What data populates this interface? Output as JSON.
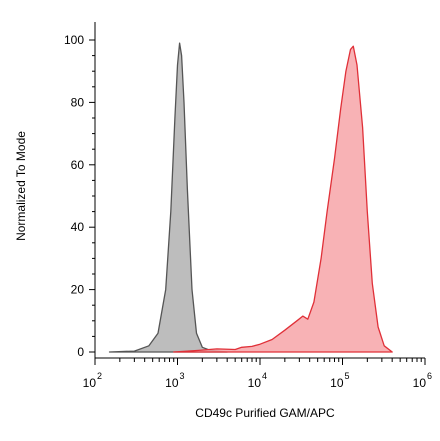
{
  "chart_data": {
    "type": "area",
    "title": "",
    "xlabel": "CD49c Purified GAM/APC",
    "ylabel": "Normalized To Mode",
    "x_scale": "log",
    "xlim": [
      100,
      1000000
    ],
    "ylim": [
      0,
      100
    ],
    "x_ticks": [
      {
        "base": "10",
        "exp": "2",
        "value": 100
      },
      {
        "base": "10",
        "exp": "3",
        "value": 1000
      },
      {
        "base": "10",
        "exp": "4",
        "value": 10000
      },
      {
        "base": "10",
        "exp": "5",
        "value": 100000
      },
      {
        "base": "10",
        "exp": "6",
        "value": 1000000
      }
    ],
    "y_ticks": [
      "0",
      "20",
      "40",
      "60",
      "80",
      "100"
    ],
    "grid": false,
    "legend": "none",
    "series": [
      {
        "color_fill": "#bdbdbd",
        "color_line": "#555555",
        "points": [
          [
            150,
            0
          ],
          [
            300,
            0.3
          ],
          [
            450,
            2
          ],
          [
            580,
            6
          ],
          [
            720,
            20
          ],
          [
            830,
            45
          ],
          [
            930,
            75
          ],
          [
            1000,
            92
          ],
          [
            1060,
            99
          ],
          [
            1120,
            95
          ],
          [
            1200,
            80
          ],
          [
            1320,
            52
          ],
          [
            1500,
            20
          ],
          [
            1700,
            6
          ],
          [
            2000,
            1.5
          ],
          [
            2500,
            0.5
          ],
          [
            4000,
            0
          ]
        ]
      },
      {
        "color_fill": "#f7a5a8",
        "color_line": "#e03038",
        "points": [
          [
            900,
            0
          ],
          [
            1800,
            0.5
          ],
          [
            3000,
            1
          ],
          [
            5000,
            0.8
          ],
          [
            6000,
            1.5
          ],
          [
            8000,
            1.8
          ],
          [
            10000,
            2.5
          ],
          [
            14000,
            4
          ],
          [
            20000,
            7
          ],
          [
            28000,
            10
          ],
          [
            33000,
            11.5
          ],
          [
            38000,
            10.5
          ],
          [
            45000,
            16
          ],
          [
            55000,
            30
          ],
          [
            65000,
            45
          ],
          [
            80000,
            62
          ],
          [
            95000,
            78
          ],
          [
            110000,
            90
          ],
          [
            125000,
            97
          ],
          [
            135000,
            98
          ],
          [
            150000,
            92
          ],
          [
            175000,
            72
          ],
          [
            200000,
            45
          ],
          [
            230000,
            22
          ],
          [
            270000,
            8
          ],
          [
            320000,
            2
          ],
          [
            400000,
            0
          ]
        ]
      }
    ]
  }
}
